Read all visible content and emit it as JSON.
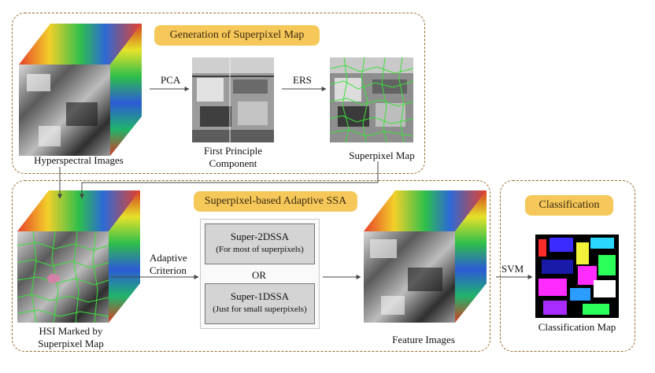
{
  "panels": {
    "generation": {
      "badge": "Generation of Superpixel Map"
    },
    "adaptive": {
      "badge": "Superpixel-based Adaptive SSA"
    },
    "classification": {
      "badge": "Classification"
    }
  },
  "images": {
    "hyperspectral": {
      "caption": "Hyperspectral Images"
    },
    "first_pc": {
      "caption_line1": "First Principle",
      "caption_line2": "Component"
    },
    "superpixel_map": {
      "caption": "Superpixel Map"
    },
    "hsi_marked": {
      "caption_line1": "HSI Marked by",
      "caption_line2": "Superpixel Map"
    },
    "feature_images": {
      "caption": "Feature Images"
    },
    "classification_map": {
      "caption": "Classification Map"
    }
  },
  "edges": {
    "pca": "PCA",
    "ers": "ERS",
    "adaptive_line1": "Adaptive",
    "adaptive_line2": "Criterion",
    "svm": "SVM"
  },
  "options": {
    "opt1_title": "Super-2DSSA",
    "opt1_sub": "(For most of superpixels)",
    "or": "OR",
    "opt2_title": "Super-1DSSA",
    "opt2_sub": "(Just for small superpixels)"
  },
  "colors": {
    "panel_border": "#9c6a2e",
    "badge": "#f6c85a",
    "superpixel_line": "#3ce03c"
  }
}
